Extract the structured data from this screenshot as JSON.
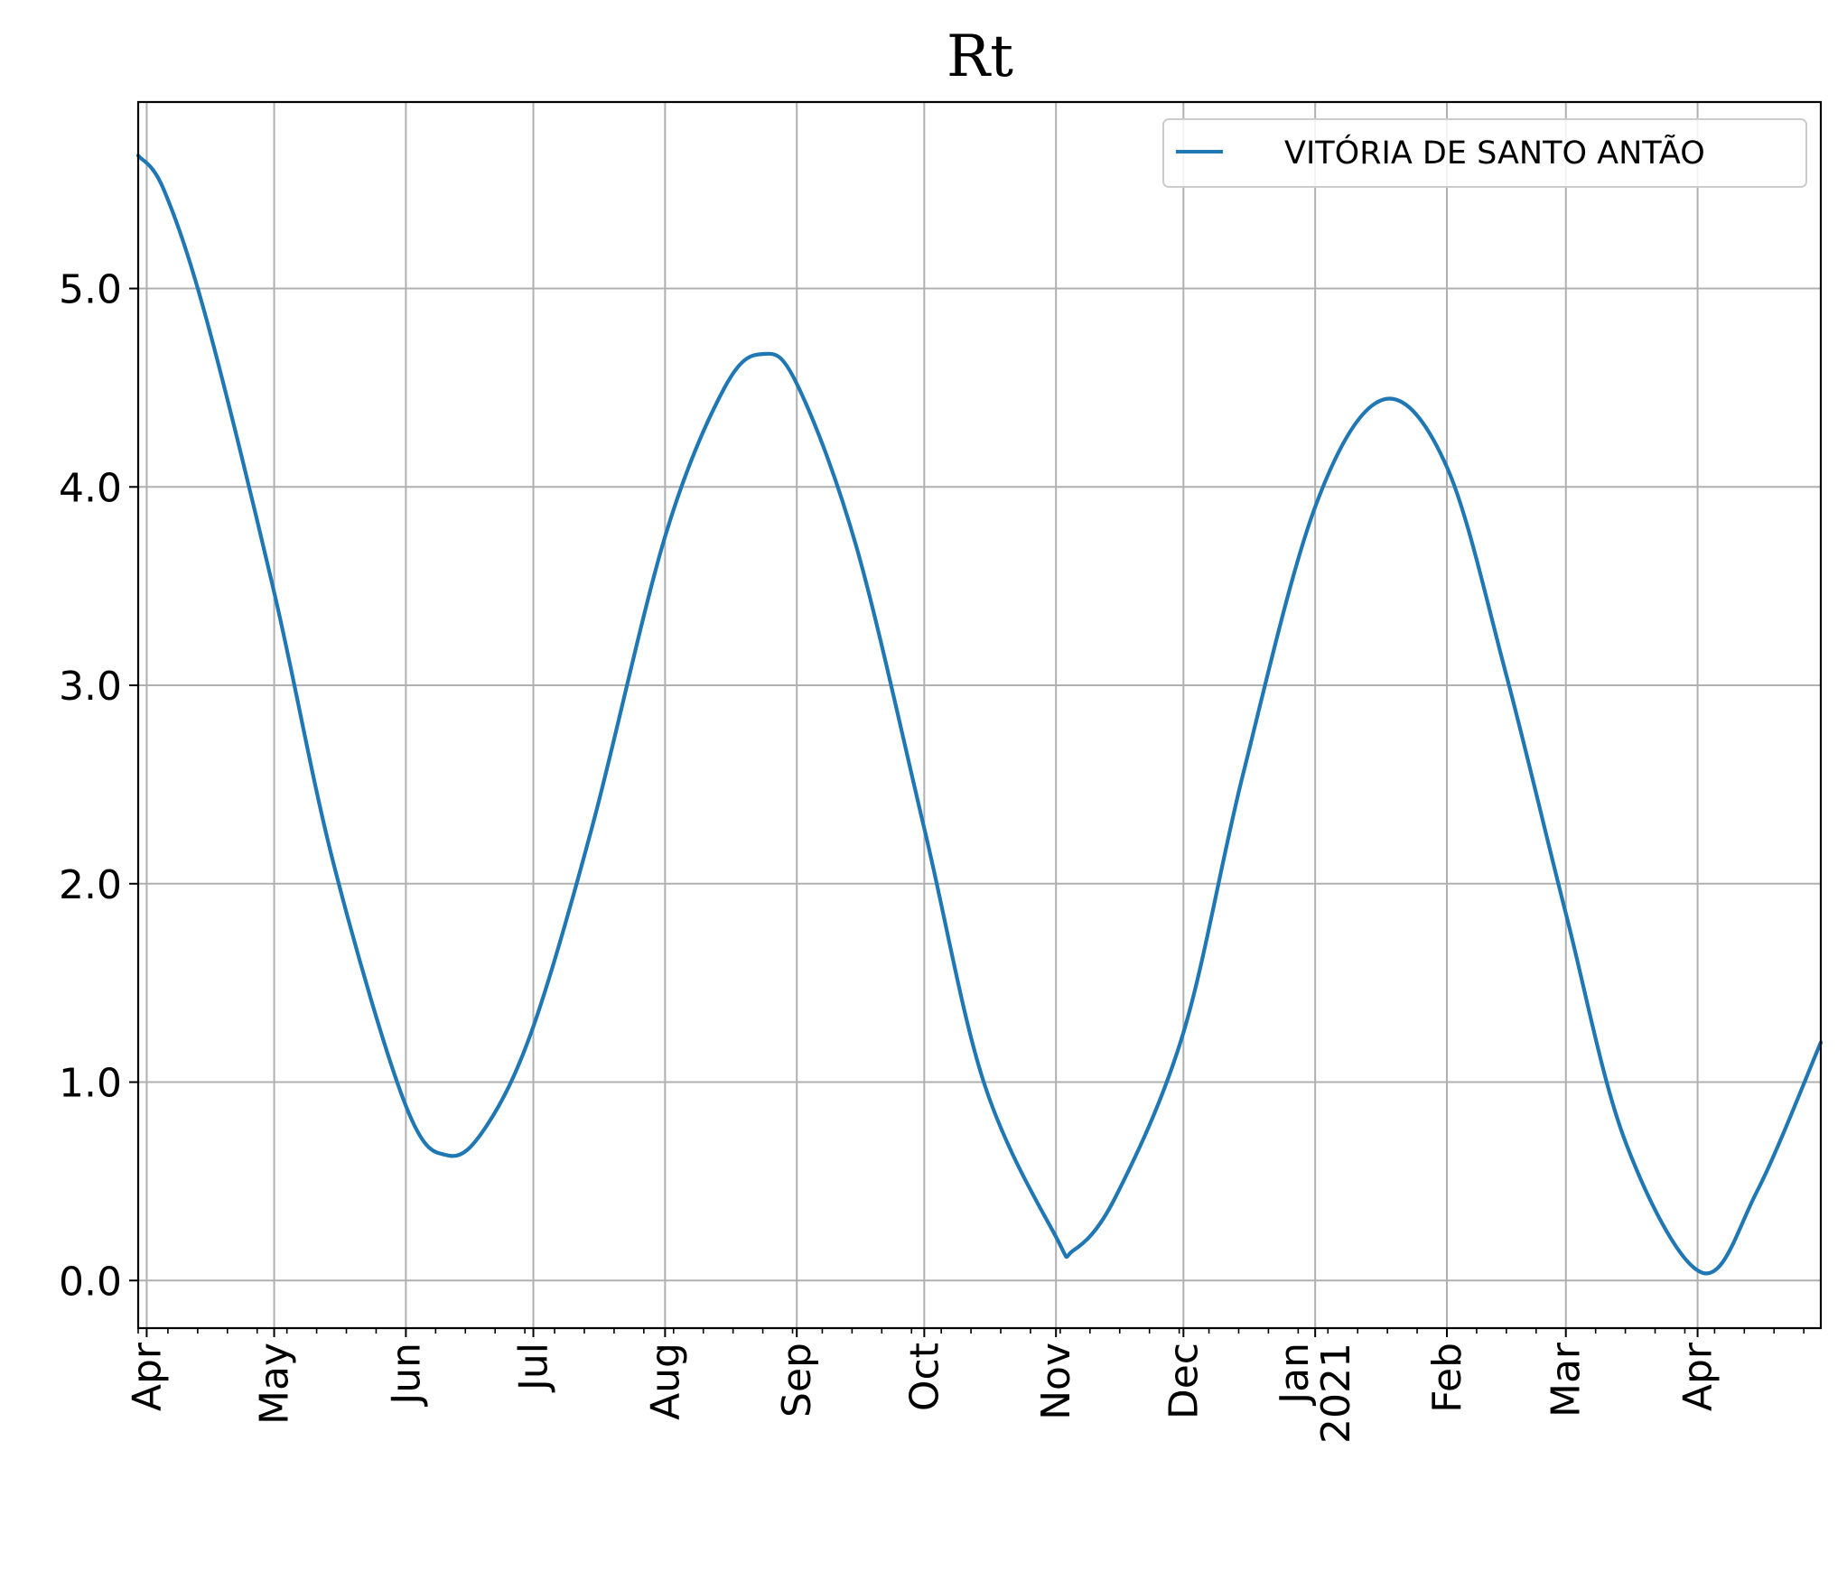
{
  "chart_data": {
    "type": "line",
    "title": "Rt",
    "xlabel": "",
    "ylabel": "",
    "grid": true,
    "legend_position": "top-right",
    "xlim": [
      "2020-03-30",
      "2021-04-30"
    ],
    "ylim": [
      -0.24,
      5.94
    ],
    "y_ticks": [
      {
        "value": 0,
        "label": "0.0"
      },
      {
        "value": 1,
        "label": "1.0"
      },
      {
        "value": 2,
        "label": "2.0"
      },
      {
        "value": 3,
        "label": "3.0"
      },
      {
        "value": 4,
        "label": "4.0"
      },
      {
        "value": 5,
        "label": "5.0"
      }
    ],
    "x_ticks": [
      {
        "date": "2020-04-01",
        "label": "Apr"
      },
      {
        "date": "2020-05-01",
        "label": "May"
      },
      {
        "date": "2020-06-01",
        "label": "Jun"
      },
      {
        "date": "2020-07-01",
        "label": "Jul"
      },
      {
        "date": "2020-08-01",
        "label": "Aug"
      },
      {
        "date": "2020-09-01",
        "label": "Sep"
      },
      {
        "date": "2020-10-01",
        "label": "Oct"
      },
      {
        "date": "2020-11-01",
        "label": "Nov"
      },
      {
        "date": "2020-12-01",
        "label": "Dec"
      },
      {
        "date": "2021-01-01",
        "label": "Jan",
        "label2": "2021"
      },
      {
        "date": "2021-02-01",
        "label": "Feb"
      },
      {
        "date": "2021-03-01",
        "label": "Mar"
      },
      {
        "date": "2021-04-01",
        "label": "Apr"
      }
    ],
    "series": [
      {
        "name": "VITÓRIA DE SANTO ANTÃO",
        "color": "#1f77b4",
        "points": [
          {
            "x": "2020-03-30",
            "y": 5.67
          },
          {
            "x": "2020-04-05",
            "y": 5.5
          },
          {
            "x": "2020-04-15",
            "y": 4.85
          },
          {
            "x": "2020-05-01",
            "y": 3.47
          },
          {
            "x": "2020-05-15",
            "y": 2.1
          },
          {
            "x": "2020-06-01",
            "y": 0.88
          },
          {
            "x": "2020-06-11",
            "y": 0.63
          },
          {
            "x": "2020-06-20",
            "y": 0.78
          },
          {
            "x": "2020-07-01",
            "y": 1.28
          },
          {
            "x": "2020-07-15",
            "y": 2.3
          },
          {
            "x": "2020-08-01",
            "y": 3.75
          },
          {
            "x": "2020-08-15",
            "y": 4.5
          },
          {
            "x": "2020-08-24",
            "y": 4.67
          },
          {
            "x": "2020-09-01",
            "y": 4.52
          },
          {
            "x": "2020-09-15",
            "y": 3.7
          },
          {
            "x": "2020-10-01",
            "y": 2.28
          },
          {
            "x": "2020-10-15",
            "y": 1.0
          },
          {
            "x": "2020-11-01",
            "y": 0.22
          },
          {
            "x": "2020-11-05",
            "y": 0.15
          },
          {
            "x": "2020-11-15",
            "y": 0.42
          },
          {
            "x": "2020-12-01",
            "y": 1.25
          },
          {
            "x": "2020-12-15",
            "y": 2.55
          },
          {
            "x": "2021-01-01",
            "y": 3.9
          },
          {
            "x": "2021-01-17",
            "y": 4.44
          },
          {
            "x": "2021-02-01",
            "y": 4.1
          },
          {
            "x": "2021-02-15",
            "y": 3.05
          },
          {
            "x": "2021-03-01",
            "y": 1.85
          },
          {
            "x": "2021-03-15",
            "y": 0.7
          },
          {
            "x": "2021-04-02",
            "y": 0.04
          },
          {
            "x": "2021-04-15",
            "y": 0.45
          },
          {
            "x": "2021-04-30",
            "y": 1.2
          }
        ]
      }
    ]
  }
}
